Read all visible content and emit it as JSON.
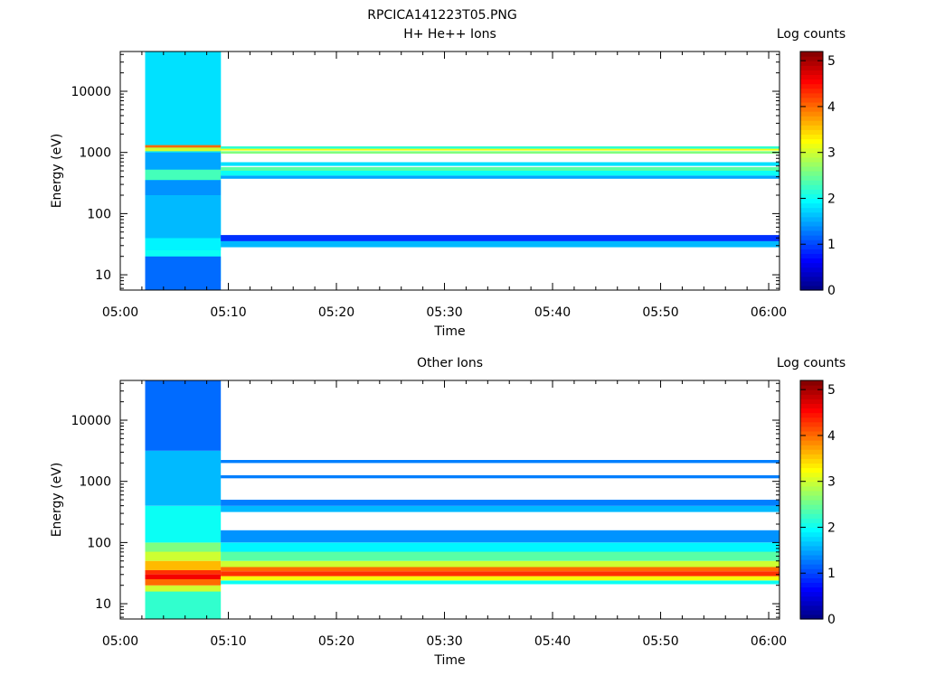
{
  "figure": {
    "title": "RPCICA141223T05.PNG"
  },
  "colormap": [
    "#00007f",
    "#0000ff",
    "#007fff",
    "#00ffff",
    "#7fff7f",
    "#ffff00",
    "#ff7f00",
    "#ff0000",
    "#7f0000"
  ],
  "chart_data": [
    {
      "type": "heatmap",
      "title": "H+ He++ Ions",
      "xlabel": "Time",
      "ylabel": "Energy (eV)",
      "colorbar_label": "Log counts",
      "colorbar_ticks": [
        "0",
        "1",
        "2",
        "3",
        "4",
        "5"
      ],
      "x_ticks": [
        "05:00",
        "05:10",
        "05:20",
        "05:30",
        "05:40",
        "05:50",
        "06:00"
      ],
      "y_ticks": [
        "10",
        "100",
        "1000",
        "10000"
      ],
      "x_range_min": [
        0,
        61
      ],
      "y_range_log10": [
        0.75,
        4.65
      ],
      "y_scale": "log",
      "z_range": [
        0,
        5.2
      ],
      "cells": [
        [
          2.3,
          9.3,
          0.9,
          4.65,
          2.0
        ],
        [
          2.3,
          9.3,
          0.75,
          1.3,
          1.2
        ],
        [
          2.3,
          9.3,
          1.4,
          1.6,
          1.9
        ],
        [
          2.3,
          9.3,
          1.6,
          2.3,
          1.6
        ],
        [
          2.3,
          9.3,
          2.3,
          2.55,
          1.4
        ],
        [
          2.3,
          9.3,
          2.55,
          2.72,
          2.3
        ],
        [
          2.3,
          9.3,
          2.72,
          3.0,
          1.5
        ],
        [
          2.3,
          9.3,
          3.0,
          4.65,
          1.8
        ],
        [
          2.3,
          9.3,
          3.02,
          3.08,
          3.0
        ],
        [
          2.3,
          9.3,
          3.08,
          3.12,
          4.0
        ],
        [
          9.3,
          61,
          2.98,
          3.02,
          2.6
        ],
        [
          9.3,
          61,
          3.03,
          3.06,
          3.2
        ],
        [
          9.3,
          61,
          3.06,
          3.1,
          2.2
        ],
        [
          9.3,
          61,
          2.78,
          2.84,
          1.8
        ],
        [
          9.3,
          61,
          2.7,
          2.76,
          2.4
        ],
        [
          9.3,
          61,
          2.62,
          2.7,
          2.0
        ],
        [
          9.3,
          61,
          2.57,
          2.62,
          1.5
        ],
        [
          9.3,
          61,
          1.45,
          1.55,
          1.6
        ],
        [
          9.3,
          61,
          1.55,
          1.65,
          0.9
        ]
      ]
    },
    {
      "type": "heatmap",
      "title": "Other Ions",
      "xlabel": "Time",
      "ylabel": "Energy (eV)",
      "colorbar_label": "Log counts",
      "colorbar_ticks": [
        "0",
        "1",
        "2",
        "3",
        "4",
        "5"
      ],
      "x_ticks": [
        "05:00",
        "05:10",
        "05:20",
        "05:30",
        "05:40",
        "05:50",
        "06:00"
      ],
      "y_ticks": [
        "10",
        "100",
        "1000",
        "10000"
      ],
      "x_range_min": [
        0,
        61
      ],
      "y_range_log10": [
        0.75,
        4.65
      ],
      "y_scale": "log",
      "z_range": [
        0,
        5.2
      ],
      "cells": [
        [
          2.3,
          9.3,
          0.75,
          1.2,
          2.2
        ],
        [
          2.3,
          9.3,
          1.2,
          1.3,
          3.0
        ],
        [
          2.3,
          9.3,
          1.3,
          1.4,
          4.0
        ],
        [
          2.3,
          9.3,
          1.4,
          1.48,
          4.6
        ],
        [
          2.3,
          9.3,
          1.48,
          1.55,
          4.3
        ],
        [
          2.3,
          9.3,
          1.55,
          1.7,
          3.6
        ],
        [
          2.3,
          9.3,
          1.7,
          1.85,
          3.0
        ],
        [
          2.3,
          9.3,
          1.85,
          2.0,
          2.6
        ],
        [
          2.3,
          9.3,
          2.0,
          2.6,
          2.0
        ],
        [
          2.3,
          9.3,
          2.6,
          3.5,
          1.6
        ],
        [
          2.3,
          9.3,
          3.5,
          4.65,
          1.2
        ],
        [
          9.3,
          61,
          1.32,
          1.38,
          2.0
        ],
        [
          9.3,
          61,
          1.38,
          1.45,
          3.2
        ],
        [
          9.3,
          61,
          1.45,
          1.53,
          4.3
        ],
        [
          9.3,
          61,
          1.53,
          1.6,
          4.0
        ],
        [
          9.3,
          61,
          1.6,
          1.7,
          3.0
        ],
        [
          9.3,
          61,
          1.7,
          1.85,
          2.4
        ],
        [
          9.3,
          61,
          1.85,
          2.0,
          1.9
        ],
        [
          9.3,
          61,
          2.0,
          2.2,
          1.4
        ],
        [
          9.3,
          61,
          2.5,
          2.6,
          1.6
        ],
        [
          9.3,
          61,
          2.6,
          2.7,
          1.3
        ],
        [
          9.3,
          61,
          3.05,
          3.1,
          1.3
        ],
        [
          9.3,
          61,
          3.3,
          3.35,
          1.3
        ]
      ]
    }
  ]
}
